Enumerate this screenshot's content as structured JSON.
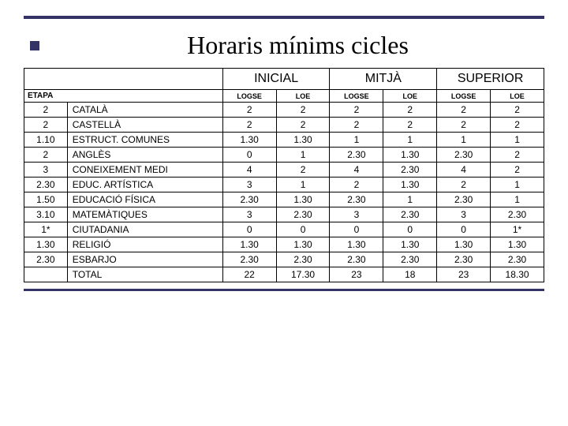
{
  "title": "Horaris mínims cicles",
  "colors": {
    "accent": "#333366",
    "border": "#000000",
    "background": "#ffffff",
    "text": "#000000"
  },
  "table": {
    "etapa_label": "ETAPA",
    "groups": [
      "INICIAL",
      "MITJÀ",
      "SUPERIOR"
    ],
    "subheaders": [
      "LOGSE",
      "LOE",
      "LOGSE",
      "LOE",
      "LOGSE",
      "LOE"
    ],
    "rows": [
      {
        "etapa": "2",
        "name": "CATALÀ",
        "vals": [
          "2",
          "2",
          "2",
          "2",
          "2",
          "2"
        ]
      },
      {
        "etapa": "2",
        "name": "CASTELLÀ",
        "vals": [
          "2",
          "2",
          "2",
          "2",
          "2",
          "2"
        ]
      },
      {
        "etapa": "1.10",
        "name": "ESTRUCT. COMUNES",
        "vals": [
          "1.30",
          "1.30",
          "1",
          "1",
          "1",
          "1"
        ]
      },
      {
        "etapa": "2",
        "name": "ANGLÈS",
        "vals": [
          "0",
          "1",
          "2.30",
          "1.30",
          "2.30",
          "2"
        ]
      },
      {
        "etapa": "3",
        "name": "CONEIXEMENT MEDI",
        "vals": [
          "4",
          "2",
          "4",
          "2.30",
          "4",
          "2"
        ]
      },
      {
        "etapa": "2.30",
        "name": "EDUC. ARTÍSTICA",
        "vals": [
          "3",
          "1",
          "2",
          "1.30",
          "2",
          "1"
        ]
      },
      {
        "etapa": "1.50",
        "name": "EDUCACIÓ FÍSICA",
        "vals": [
          "2.30",
          "1.30",
          "2.30",
          "1",
          "2.30",
          "1"
        ]
      },
      {
        "etapa": "3.10",
        "name": "MATEMÀTIQUES",
        "vals": [
          "3",
          "2.30",
          "3",
          "2.30",
          "3",
          "2.30"
        ]
      },
      {
        "etapa": "1*",
        "name": "CIUTADANIA",
        "vals": [
          "0",
          "0",
          "0",
          "0",
          "0",
          "1*"
        ]
      },
      {
        "etapa": "1.30",
        "name": "RELIGIÓ",
        "vals": [
          "1.30",
          "1.30",
          "1.30",
          "1.30",
          "1.30",
          "1.30"
        ]
      },
      {
        "etapa": "2.30",
        "name": "ESBARJO",
        "vals": [
          "2.30",
          "2.30",
          "2.30",
          "2.30",
          "2.30",
          "2.30"
        ]
      },
      {
        "etapa": "",
        "name": "TOTAL",
        "vals": [
          "22",
          "17.30",
          "23",
          "18",
          "23",
          "18.30"
        ]
      }
    ]
  }
}
